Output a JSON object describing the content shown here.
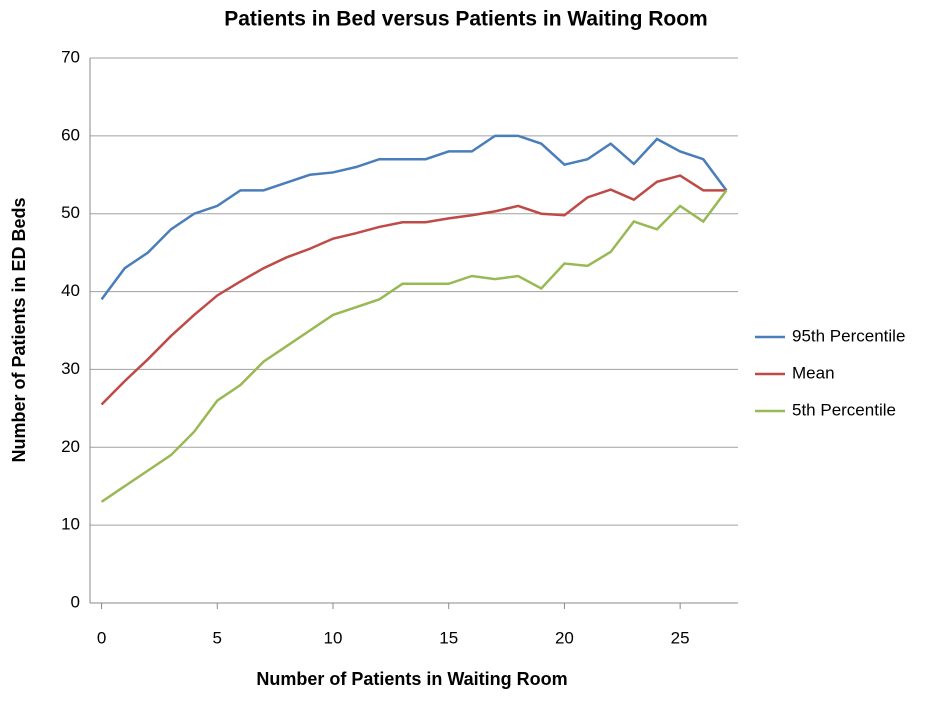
{
  "chart_data": {
    "type": "line",
    "title": "Patients in Bed versus Patients in Waiting Room",
    "x_label": "Number of Patients in Waiting Room",
    "y_label": "Number of Patients in ED Beds",
    "x": [
      0,
      1,
      2,
      3,
      4,
      5,
      6,
      7,
      8,
      9,
      10,
      11,
      12,
      13,
      14,
      15,
      16,
      17,
      18,
      19,
      20,
      21,
      22,
      23,
      24,
      25,
      26,
      27
    ],
    "series": [
      {
        "name": "95th Percentile",
        "color": "#4a7ebb",
        "values": [
          39,
          43,
          45,
          48,
          50,
          51,
          53,
          53,
          54,
          55,
          55.3,
          56,
          57,
          57,
          57,
          58,
          58,
          60,
          60,
          59,
          56.3,
          57,
          59,
          56.4,
          59.6,
          58,
          57,
          53
        ]
      },
      {
        "name": "Mean",
        "color": "#be4b48",
        "values": [
          25.5,
          28.5,
          31.3,
          34.3,
          37,
          39.5,
          41.3,
          43,
          44.4,
          45.5,
          46.8,
          47.5,
          48.3,
          48.9,
          48.9,
          49.4,
          49.8,
          50.3,
          51,
          50,
          49.8,
          52.1,
          53.1,
          51.8,
          54.1,
          54.9,
          53,
          53
        ]
      },
      {
        "name": "5th Percentile",
        "color": "#98b954",
        "values": [
          13,
          15,
          17,
          19,
          22,
          26,
          28,
          31,
          33,
          35,
          37,
          38,
          39,
          41,
          41,
          41,
          42,
          41.6,
          42,
          40.4,
          43.6,
          43.3,
          45.1,
          49,
          48,
          51,
          49,
          53
        ]
      }
    ],
    "xlim": [
      -0.5,
      27.5
    ],
    "xticks": [
      0,
      5,
      10,
      15,
      20,
      25
    ],
    "ylim": [
      0,
      70
    ],
    "yticks": [
      0,
      10,
      20,
      30,
      40,
      50,
      60,
      70
    ],
    "grid": true,
    "legend": "right"
  }
}
